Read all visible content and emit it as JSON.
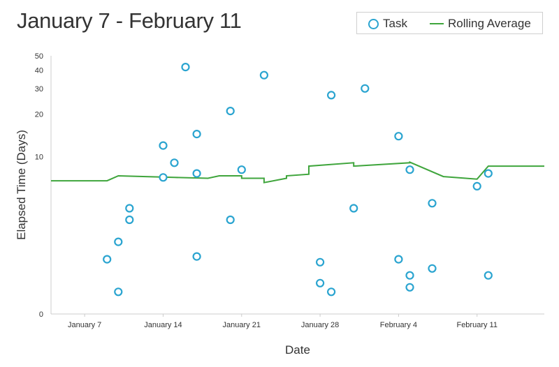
{
  "title": "January 7 - February 11",
  "legend": {
    "task_label": "Task",
    "avg_label": "Rolling Average",
    "placement": "top-right"
  },
  "colors": {
    "task": "#2aa4d0",
    "rolling_average": "#3fa53c",
    "axis": "#cccccc"
  },
  "chart_data": {
    "type": "scatter",
    "title": "January 7 - February 11",
    "xlabel": "Date",
    "ylabel": "Elapsed Time (Days)",
    "x_axis_type": "date",
    "y_scale": "log(1+y)",
    "xlim": [
      "2019-01-04",
      "2019-02-17"
    ],
    "ylim": [
      0,
      50
    ],
    "grid": false,
    "x_ticks": [
      "January 7",
      "January 14",
      "January 21",
      "January 28",
      "February 4",
      "February 11"
    ],
    "x_tick_dates": [
      "2019-01-07",
      "2019-01-14",
      "2019-01-21",
      "2019-01-28",
      "2019-02-04",
      "2019-02-11"
    ],
    "y_ticks": [
      0,
      10,
      20,
      30,
      40,
      50
    ],
    "series": [
      {
        "name": "Task",
        "kind": "scatter",
        "points": [
          [
            "2019-01-09",
            1.3
          ],
          [
            "2019-01-10",
            2.0
          ],
          [
            "2019-01-10",
            0.4
          ],
          [
            "2019-01-11",
            4.0
          ],
          [
            "2019-01-11",
            3.2
          ],
          [
            "2019-01-14",
            12.0
          ],
          [
            "2019-01-14",
            7.0
          ],
          [
            "2019-01-15",
            9.0
          ],
          [
            "2019-01-16",
            42.0
          ],
          [
            "2019-01-17",
            14.5
          ],
          [
            "2019-01-17",
            1.4
          ],
          [
            "2019-01-17",
            7.5
          ],
          [
            "2019-01-20",
            21.0
          ],
          [
            "2019-01-20",
            3.2
          ],
          [
            "2019-01-21",
            8.0
          ],
          [
            "2019-01-23",
            37.0
          ],
          [
            "2019-01-28",
            1.2
          ],
          [
            "2019-01-28",
            0.6
          ],
          [
            "2019-01-29",
            27.0
          ],
          [
            "2019-01-29",
            0.4
          ],
          [
            "2019-01-31",
            4.0
          ],
          [
            "2019-02-01",
            30.0
          ],
          [
            "2019-02-04",
            14.0
          ],
          [
            "2019-02-04",
            1.3
          ],
          [
            "2019-02-05",
            0.5
          ],
          [
            "2019-02-05",
            0.8
          ],
          [
            "2019-02-05",
            8.0
          ],
          [
            "2019-02-07",
            4.4
          ],
          [
            "2019-02-07",
            1.0
          ],
          [
            "2019-02-11",
            6.0
          ],
          [
            "2019-02-12",
            0.8
          ],
          [
            "2019-02-12",
            7.5
          ]
        ]
      },
      {
        "name": "Rolling Average",
        "kind": "line",
        "points": [
          [
            "2019-01-04",
            6.6
          ],
          [
            "2019-01-09",
            6.6
          ],
          [
            "2019-01-10",
            7.2
          ],
          [
            "2019-01-15",
            7.0
          ],
          [
            "2019-01-18",
            6.9
          ],
          [
            "2019-01-19",
            7.2
          ],
          [
            "2019-01-21",
            7.2
          ],
          [
            "2019-01-21",
            6.9
          ],
          [
            "2019-01-23",
            6.9
          ],
          [
            "2019-01-23",
            6.4
          ],
          [
            "2019-01-25",
            6.9
          ],
          [
            "2019-01-25",
            7.2
          ],
          [
            "2019-01-27",
            7.4
          ],
          [
            "2019-01-27",
            8.5
          ],
          [
            "2019-01-31",
            9.0
          ],
          [
            "2019-01-31",
            8.5
          ],
          [
            "2019-02-05",
            9.0
          ],
          [
            "2019-02-05",
            9.1
          ],
          [
            "2019-02-08",
            7.1
          ],
          [
            "2019-02-11",
            6.8
          ],
          [
            "2019-02-12",
            8.5
          ],
          [
            "2019-02-17",
            8.5
          ]
        ]
      }
    ]
  }
}
